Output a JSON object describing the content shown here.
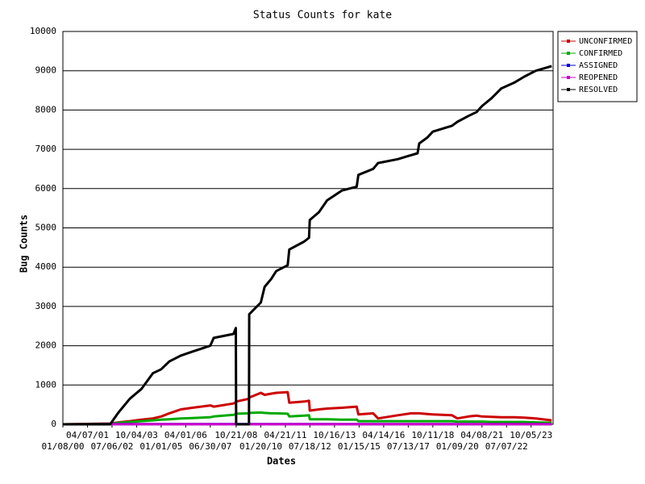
{
  "chart_data": {
    "type": "line",
    "title": "Status Counts for kate",
    "x_label": "Dates",
    "y_label": "Bug Counts",
    "x": [
      "2000-01-08",
      "2002-06-01",
      "2002-11-01",
      "2003-06-01",
      "2004-01-01",
      "2004-08-01",
      "2005-01-01",
      "2005-06-01",
      "2006-01-01",
      "2006-08-01",
      "2007-06-30",
      "2007-09-01",
      "2008-09-01",
      "2008-10-15",
      "2008-10-21",
      "2009-06-15",
      "2009-06-20",
      "2010-01-20",
      "2010-04-01",
      "2010-08-01",
      "2010-11-01",
      "2011-06-01",
      "2011-07-01",
      "2012-04-01",
      "2012-07-01",
      "2012-07-15",
      "2013-01-01",
      "2013-06-01",
      "2014-03-01",
      "2014-12-01",
      "2015-01-01",
      "2015-10-01",
      "2016-01-01",
      "2017-01-01",
      "2017-09-01",
      "2018-01-01",
      "2018-02-01",
      "2018-07-01",
      "2018-10-11",
      "2019-10-01",
      "2020-01-09",
      "2020-08-01",
      "2021-01-01",
      "2021-04-08",
      "2021-10-01",
      "2022-04-01",
      "2022-12-01",
      "2023-06-01",
      "2024-01-01",
      "2024-10-20"
    ],
    "series": [
      {
        "name": "UNCONFIRMED",
        "color": "#cc0000",
        "values": [
          0,
          20,
          50,
          80,
          120,
          150,
          200,
          280,
          380,
          420,
          480,
          450,
          530,
          560,
          580,
          650,
          680,
          800,
          750,
          780,
          800,
          820,
          550,
          580,
          600,
          350,
          380,
          400,
          420,
          450,
          250,
          280,
          150,
          230,
          280,
          280,
          280,
          260,
          250,
          230,
          150,
          200,
          220,
          200,
          190,
          180,
          180,
          170,
          150,
          100
        ]
      },
      {
        "name": "CONFIRMED",
        "color": "#00aa00",
        "values": [
          0,
          10,
          40,
          60,
          80,
          100,
          120,
          130,
          150,
          160,
          180,
          200,
          240,
          260,
          270,
          280,
          290,
          300,
          290,
          280,
          280,
          270,
          200,
          220,
          230,
          130,
          130,
          130,
          120,
          120,
          80,
          80,
          80,
          80,
          80,
          80,
          80,
          80,
          80,
          80,
          70,
          70,
          70,
          70,
          60,
          60,
          60,
          60,
          50,
          40
        ]
      },
      {
        "name": "ASSIGNED",
        "color": "#0000cc",
        "values": [
          0,
          5,
          5,
          5,
          5,
          5,
          5,
          5,
          5,
          5,
          5,
          5,
          5,
          5,
          5,
          5,
          5,
          5,
          5,
          5,
          5,
          5,
          5,
          5,
          5,
          5,
          5,
          5,
          5,
          5,
          5,
          5,
          5,
          5,
          5,
          5,
          5,
          5,
          5,
          5,
          5,
          5,
          5,
          5,
          5,
          5,
          5,
          5,
          5,
          5
        ]
      },
      {
        "name": "REOPENED",
        "color": "#cc00cc",
        "values": [
          0,
          2,
          2,
          2,
          2,
          2,
          2,
          2,
          2,
          2,
          2,
          2,
          2,
          2,
          2,
          2,
          2,
          2,
          2,
          2,
          2,
          2,
          2,
          2,
          2,
          2,
          2,
          2,
          2,
          2,
          2,
          2,
          2,
          2,
          2,
          2,
          2,
          2,
          2,
          2,
          2,
          2,
          2,
          2,
          2,
          2,
          2,
          2,
          2,
          2
        ]
      },
      {
        "name": "RESOLVED",
        "color": "#000000",
        "values": [
          0,
          0,
          300,
          650,
          900,
          1300,
          1400,
          1600,
          1750,
          1850,
          2000,
          2200,
          2300,
          2450,
          0,
          0,
          2800,
          3100,
          3500,
          3700,
          3900,
          4050,
          4450,
          4650,
          4750,
          5200,
          5400,
          5700,
          5950,
          6050,
          6350,
          6500,
          6650,
          6750,
          6850,
          6900,
          7150,
          7300,
          7450,
          7600,
          7700,
          7850,
          7950,
          8100,
          8300,
          8550,
          8700,
          8850,
          9000,
          9120
        ]
      }
    ],
    "xlim": [
      "2000-01-08",
      "2024-11-15"
    ],
    "xticks": [
      {
        "value": "2000-01-08",
        "label": "01/08/00"
      },
      {
        "value": "2001-04-07",
        "label": "04/07/01"
      },
      {
        "value": "2002-07-06",
        "label": "07/06/02"
      },
      {
        "value": "2003-10-04",
        "label": "10/04/03"
      },
      {
        "value": "2005-01-01",
        "label": "01/01/05"
      },
      {
        "value": "2006-04-01",
        "label": "04/01/06"
      },
      {
        "value": "2007-06-30",
        "label": "06/30/07"
      },
      {
        "value": "2008-10-21",
        "label": "10/21/08"
      },
      {
        "value": "2010-01-20",
        "label": "01/20/10"
      },
      {
        "value": "2011-04-21",
        "label": "04/21/11"
      },
      {
        "value": "2012-07-18",
        "label": "07/18/12"
      },
      {
        "value": "2013-10-16",
        "label": "10/16/13"
      },
      {
        "value": "2015-01-15",
        "label": "01/15/15"
      },
      {
        "value": "2016-04-14",
        "label": "04/14/16"
      },
      {
        "value": "2017-07-13",
        "label": "07/13/17"
      },
      {
        "value": "2018-10-11",
        "label": "10/11/18"
      },
      {
        "value": "2020-01-09",
        "label": "01/09/20"
      },
      {
        "value": "2021-04-08",
        "label": "04/08/21"
      },
      {
        "value": "2022-07-07",
        "label": "07/07/22"
      },
      {
        "value": "2023-10-05",
        "label": "10/05/23"
      }
    ],
    "ylim": [
      0,
      10000
    ],
    "yticks": [
      0,
      1000,
      2000,
      3000,
      4000,
      5000,
      6000,
      7000,
      8000,
      9000,
      10000
    ],
    "grid": true,
    "legend": "right"
  }
}
